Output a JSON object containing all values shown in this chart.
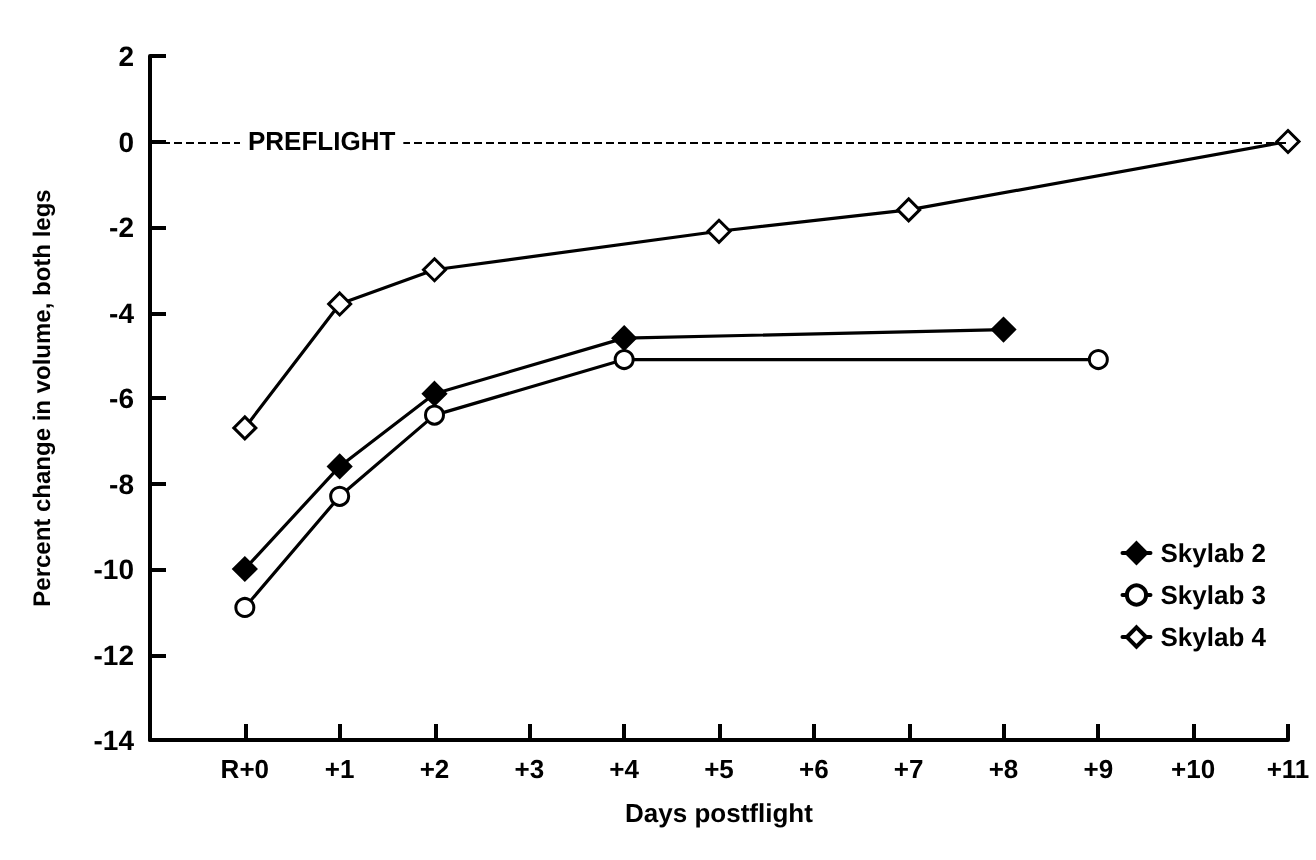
{
  "chart_data": {
    "type": "line",
    "xlabel": "Days postflight",
    "ylabel": "Percent change in volume, both legs",
    "xlim": [
      -1,
      11
    ],
    "xticks": [
      {
        "value": 0,
        "label": "R+0"
      },
      {
        "value": 1,
        "label": "+1"
      },
      {
        "value": 2,
        "label": "+2"
      },
      {
        "value": 3,
        "label": "+3"
      },
      {
        "value": 4,
        "label": "+4"
      },
      {
        "value": 5,
        "label": "+5"
      },
      {
        "value": 6,
        "label": "+6"
      },
      {
        "value": 7,
        "label": "+7"
      },
      {
        "value": 8,
        "label": "+8"
      },
      {
        "value": 9,
        "label": "+9"
      },
      {
        "value": 10,
        "label": "+10"
      },
      {
        "value": 11,
        "label": "+11"
      }
    ],
    "ylim": [
      -14,
      2
    ],
    "yticks": [
      -14,
      -12,
      -10,
      -8,
      -6,
      -4,
      -2,
      0,
      2
    ],
    "legend": "bottom right",
    "line_style": "solid",
    "ref_lines": [
      {
        "axis": "y",
        "value": 0,
        "label": "PREFLIGHT",
        "line_style": "dashed",
        "color": "#000000"
      }
    ],
    "series": [
      {
        "name": "Skylab 2",
        "color": "#000000",
        "marker": "diamond",
        "x": [
          0,
          1,
          2,
          4,
          8
        ],
        "values": [
          -10.0,
          -7.6,
          -5.9,
          -4.6,
          -4.4
        ]
      },
      {
        "name": "Skylab 3",
        "color": "#000000",
        "marker": "circle",
        "x": [
          0,
          1,
          2,
          4,
          9
        ],
        "values": [
          -10.9,
          -8.3,
          -6.4,
          -5.1,
          -5.1
        ]
      },
      {
        "name": "Skylab 4",
        "color": "#000000",
        "marker": "diamond",
        "x": [
          0,
          1,
          2,
          5,
          7,
          11
        ],
        "values": [
          -6.7,
          -3.8,
          -3.0,
          -2.1,
          -1.6,
          0
        ]
      }
    ]
  }
}
